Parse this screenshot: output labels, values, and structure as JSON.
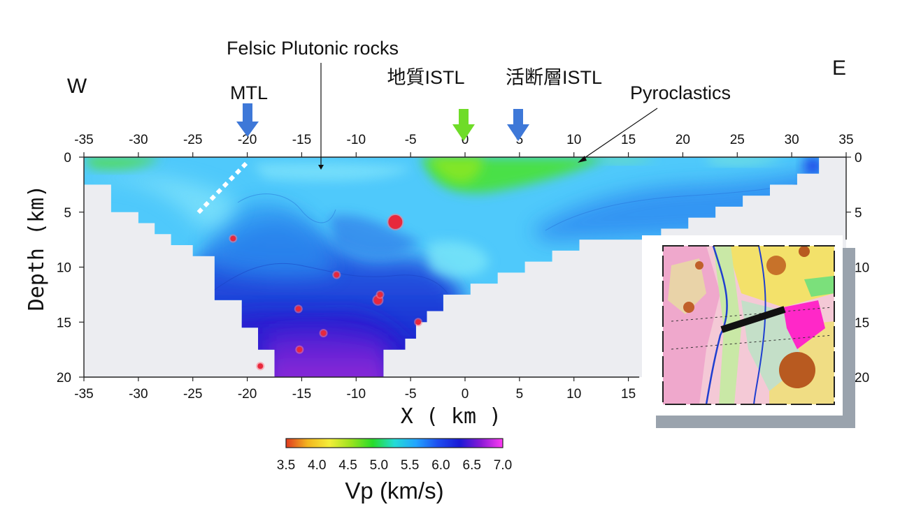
{
  "chart_data": {
    "type": "heatmap",
    "title": "",
    "xlabel": "X ( km )",
    "ylabel": "Depth (km)",
    "xlim": [
      -35,
      35
    ],
    "ylim": [
      0,
      20
    ],
    "y_inverted": true,
    "x_ticks_top": [
      "-35",
      "-30",
      "-25",
      "-20",
      "-15",
      "-10",
      "-5",
      "0",
      "5",
      "10",
      "15",
      "20",
      "25",
      "30",
      "35"
    ],
    "x_ticks_bottom": [
      "-35",
      "-30",
      "-25",
      "-20",
      "-15",
      "-10",
      "-5",
      "0",
      "5",
      "10",
      "15"
    ],
    "y_ticks": [
      "0",
      "5",
      "10",
      "15",
      "20"
    ],
    "direction_labels": {
      "west": "W",
      "east": "E"
    },
    "annotations": [
      {
        "label": "Felsic Plutonic rocks",
        "x": -13,
        "depth": 1
      },
      {
        "label": "MTL",
        "x": -20,
        "marker": "blue-arrow"
      },
      {
        "label": "地質ISTL",
        "x": 0,
        "marker": "green-arrow"
      },
      {
        "label": "活断層ISTL",
        "x": 5,
        "marker": "blue-arrow"
      },
      {
        "label": "Pyroclastics",
        "x": 10.5,
        "depth": 0.4
      }
    ],
    "colorbar": {
      "label": "Vp (km/s)",
      "min": 3.5,
      "max": 7.0,
      "ticks": [
        "3.5",
        "4.0",
        "4.5",
        "5.0",
        "5.5",
        "6.0",
        "6.5",
        "7.0"
      ],
      "colors": [
        "#e03a1f",
        "#f3b61f",
        "#f4ee3a",
        "#9be21f",
        "#27dc2a",
        "#23dcd6",
        "#23a4ff",
        "#1e4ef0",
        "#1a1ad6",
        "#8a1ad6",
        "#ff3bf3"
      ]
    },
    "model_boundary": [
      [
        -35,
        0
      ],
      [
        32.5,
        0
      ],
      [
        32.5,
        1.5
      ],
      [
        30.5,
        1.5
      ],
      [
        30.5,
        2.5
      ],
      [
        28,
        2.5
      ],
      [
        28,
        3.5
      ],
      [
        25.5,
        3.5
      ],
      [
        25.5,
        4.5
      ],
      [
        23,
        4.5
      ],
      [
        23,
        5.5
      ],
      [
        20.5,
        5.5
      ],
      [
        20.5,
        6.5
      ],
      [
        18,
        6.5
      ],
      [
        18,
        7.5
      ],
      [
        10.5,
        7.5
      ],
      [
        10.5,
        8.5
      ],
      [
        8,
        8.5
      ],
      [
        8,
        9.5
      ],
      [
        5.5,
        9.5
      ],
      [
        5.5,
        10.5
      ],
      [
        3,
        10.5
      ],
      [
        3,
        11.5
      ],
      [
        0.5,
        11.5
      ],
      [
        0.5,
        12.5
      ],
      [
        -2,
        12.5
      ],
      [
        -2,
        14
      ],
      [
        -3.5,
        14
      ],
      [
        -3.5,
        15
      ],
      [
        -4.5,
        15
      ],
      [
        -4.5,
        16.5
      ],
      [
        -5.5,
        16.5
      ],
      [
        -5.5,
        17.5
      ],
      [
        -7.5,
        17.5
      ],
      [
        -7.5,
        20
      ],
      [
        -17.5,
        20
      ],
      [
        -17.5,
        17.5
      ],
      [
        -19,
        17.5
      ],
      [
        -19,
        15.5
      ],
      [
        -20.5,
        15.5
      ],
      [
        -20.5,
        13
      ],
      [
        -23,
        13
      ],
      [
        -23,
        9
      ],
      [
        -25,
        9
      ],
      [
        -25,
        8
      ],
      [
        -27,
        8
      ],
      [
        -27,
        7
      ],
      [
        -28.5,
        7
      ],
      [
        -28.5,
        6
      ],
      [
        -30,
        6
      ],
      [
        -30,
        5
      ],
      [
        -32.5,
        5
      ],
      [
        -32.5,
        2.5
      ],
      [
        -35,
        2.5
      ]
    ],
    "earthquakes": [
      {
        "x": -6.4,
        "depth": 5.9,
        "size": "large"
      },
      {
        "x": -21.3,
        "depth": 7.4,
        "size": "small"
      },
      {
        "x": -11.8,
        "depth": 10.7,
        "size": "small"
      },
      {
        "x": -8.0,
        "depth": 13.0,
        "size": "medium"
      },
      {
        "x": -7.8,
        "depth": 12.5,
        "size": "small"
      },
      {
        "x": -15.3,
        "depth": 13.8,
        "size": "small"
      },
      {
        "x": -4.3,
        "depth": 15.0,
        "size": "small"
      },
      {
        "x": -13.0,
        "depth": 16.0,
        "size": "small"
      },
      {
        "x": -15.2,
        "depth": 17.5,
        "size": "small"
      },
      {
        "x": -18.8,
        "depth": 19.0,
        "size": "small"
      }
    ],
    "inset": {
      "description_icon": "geologic-map-inset",
      "profile_line": true
    }
  }
}
